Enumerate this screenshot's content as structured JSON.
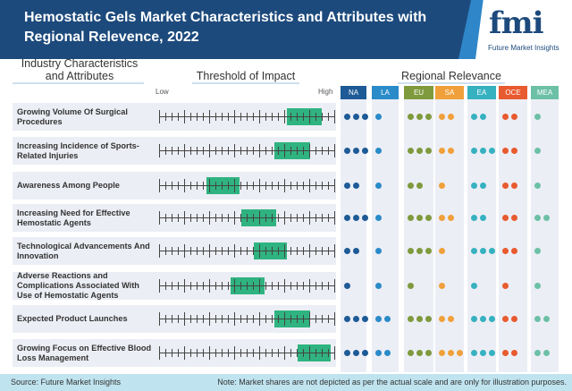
{
  "header": {
    "title": "Hemostatic Gels Market Characteristics and Attributes with Regional Relevence, 2022",
    "logo_text": "fmi",
    "logo_subtitle": "Future Market Insights"
  },
  "columns": {
    "attributes": "Industry Characteristics and Attributes",
    "threshold": "Threshold of Impact",
    "regional": "Regional Relevance",
    "low": "Low",
    "high": "High"
  },
  "chart_data": {
    "type": "table",
    "regions": [
      {
        "code": "NA",
        "color": "#1d5a96"
      },
      {
        "code": "LA",
        "color": "#2a8bc9"
      },
      {
        "code": "EU",
        "color": "#7f9a3c"
      },
      {
        "code": "SA",
        "color": "#f0a03a"
      },
      {
        "code": "EA",
        "color": "#36b1c0"
      },
      {
        "code": "OCE",
        "color": "#e85a2f"
      },
      {
        "code": "MEA",
        "color": "#6cc0a6"
      }
    ],
    "impact_scale": [
      0,
      1
    ],
    "rows": [
      {
        "label": "Growing Volume Of Surgical Procedures",
        "impact_range": [
          0.73,
          0.93
        ],
        "relevance": [
          3,
          1,
          3,
          2,
          2,
          2,
          1
        ]
      },
      {
        "label": "Increasing Incidence of Sports-Related Injuries",
        "impact_range": [
          0.66,
          0.86
        ],
        "relevance": [
          3,
          1,
          3,
          2,
          3,
          2,
          1
        ]
      },
      {
        "label": "Awareness Among People",
        "impact_range": [
          0.27,
          0.46
        ],
        "relevance": [
          2,
          1,
          2,
          1,
          2,
          2,
          1
        ]
      },
      {
        "label": "Increasing Need for Effective Hemostatic Agents",
        "impact_range": [
          0.47,
          0.67
        ],
        "relevance": [
          3,
          1,
          3,
          2,
          2,
          2,
          2
        ]
      },
      {
        "label": "Technological Advancements And Innovation",
        "impact_range": [
          0.54,
          0.73
        ],
        "relevance": [
          2,
          1,
          3,
          1,
          3,
          2,
          1
        ]
      },
      {
        "label": "Adverse Reactions and Complications Associated With Use of Hemostatic Agents",
        "impact_range": [
          0.41,
          0.6
        ],
        "relevance": [
          1,
          1,
          1,
          1,
          1,
          1,
          1
        ]
      },
      {
        "label": "Expected Product Launches",
        "impact_range": [
          0.66,
          0.86
        ],
        "relevance": [
          3,
          2,
          3,
          2,
          3,
          2,
          2
        ]
      },
      {
        "label": "Growing Focus on Effective Blood Loss Management",
        "impact_range": [
          0.79,
          0.98
        ],
        "relevance": [
          3,
          2,
          3,
          3,
          3,
          2,
          2
        ]
      }
    ],
    "bar_color": "#2fb380"
  },
  "footer": {
    "source": "Source: Future Market Insights",
    "note": "Note: Market shares are not depicted as per the actual scale and are only for illustration purposes."
  }
}
